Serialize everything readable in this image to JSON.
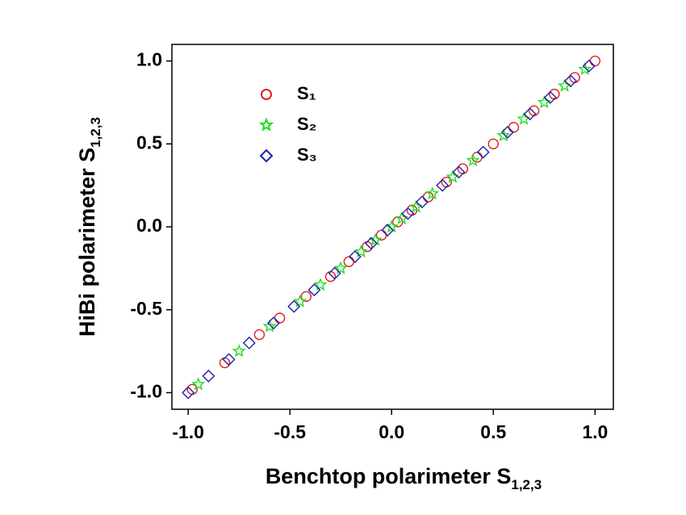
{
  "chart_data": {
    "type": "scatter",
    "x_label": {
      "text": "Benchtop polarimeter S",
      "subscript": "1,2,3"
    },
    "y_label": {
      "text": "HiBi polarimeter S",
      "subscript": "1,2,3"
    },
    "xlim": [
      -1.08,
      1.09
    ],
    "ylim": [
      -1.1,
      1.1
    ],
    "xticks": [
      {
        "value": -1,
        "label": "-1.0"
      },
      {
        "value": -0.5,
        "label": "-0.5"
      },
      {
        "value": 0,
        "label": "0.0"
      },
      {
        "value": 0.5,
        "label": "0.5"
      },
      {
        "value": 1,
        "label": "1.0"
      }
    ],
    "yticks": [
      {
        "value": -1,
        "label": "-1.0"
      },
      {
        "value": -0.5,
        "label": "-0.5"
      },
      {
        "value": 0,
        "label": "0.0"
      },
      {
        "value": 0.5,
        "label": "0.5"
      },
      {
        "value": 1,
        "label": "1.0"
      }
    ],
    "legend": "upper left",
    "series": [
      {
        "name": "S₁",
        "marker": "circle",
        "color": "#e02020",
        "x": [
          -0.98,
          -0.82,
          -0.65,
          -0.55,
          -0.42,
          -0.3,
          -0.21,
          -0.12,
          -0.05,
          0.03,
          0.1,
          0.18,
          0.27,
          0.35,
          0.42,
          0.5,
          0.6,
          0.7,
          0.8,
          0.9,
          1.0
        ],
        "values": [
          -0.98,
          -0.82,
          -0.65,
          -0.55,
          -0.42,
          -0.3,
          -0.21,
          -0.12,
          -0.05,
          0.03,
          0.1,
          0.18,
          0.27,
          0.35,
          0.42,
          0.5,
          0.6,
          0.7,
          0.8,
          0.9,
          1.0
        ]
      },
      {
        "name": "S₂",
        "marker": "star",
        "color": "#22dd22",
        "x": [
          -0.95,
          -0.75,
          -0.6,
          -0.45,
          -0.35,
          -0.25,
          -0.15,
          -0.08,
          0,
          0.05,
          0.12,
          0.2,
          0.3,
          0.4,
          0.55,
          0.65,
          0.75,
          0.85,
          0.95
        ],
        "values": [
          -0.95,
          -0.75,
          -0.6,
          -0.45,
          -0.35,
          -0.25,
          -0.15,
          -0.08,
          0,
          0.05,
          0.12,
          0.2,
          0.3,
          0.4,
          0.55,
          0.65,
          0.75,
          0.85,
          0.95
        ]
      },
      {
        "name": "S₃",
        "marker": "diamond",
        "color": "#2020b0",
        "x": [
          -1.0,
          -0.9,
          -0.8,
          -0.7,
          -0.58,
          -0.48,
          -0.38,
          -0.28,
          -0.18,
          -0.1,
          -0.02,
          0.08,
          0.15,
          0.25,
          0.33,
          0.45,
          0.57,
          0.68,
          0.78,
          0.88,
          0.97
        ],
        "values": [
          -1.0,
          -0.9,
          -0.8,
          -0.7,
          -0.58,
          -0.48,
          -0.38,
          -0.28,
          -0.18,
          -0.1,
          -0.02,
          0.08,
          0.15,
          0.25,
          0.33,
          0.45,
          0.57,
          0.68,
          0.78,
          0.88,
          0.97
        ]
      }
    ]
  }
}
